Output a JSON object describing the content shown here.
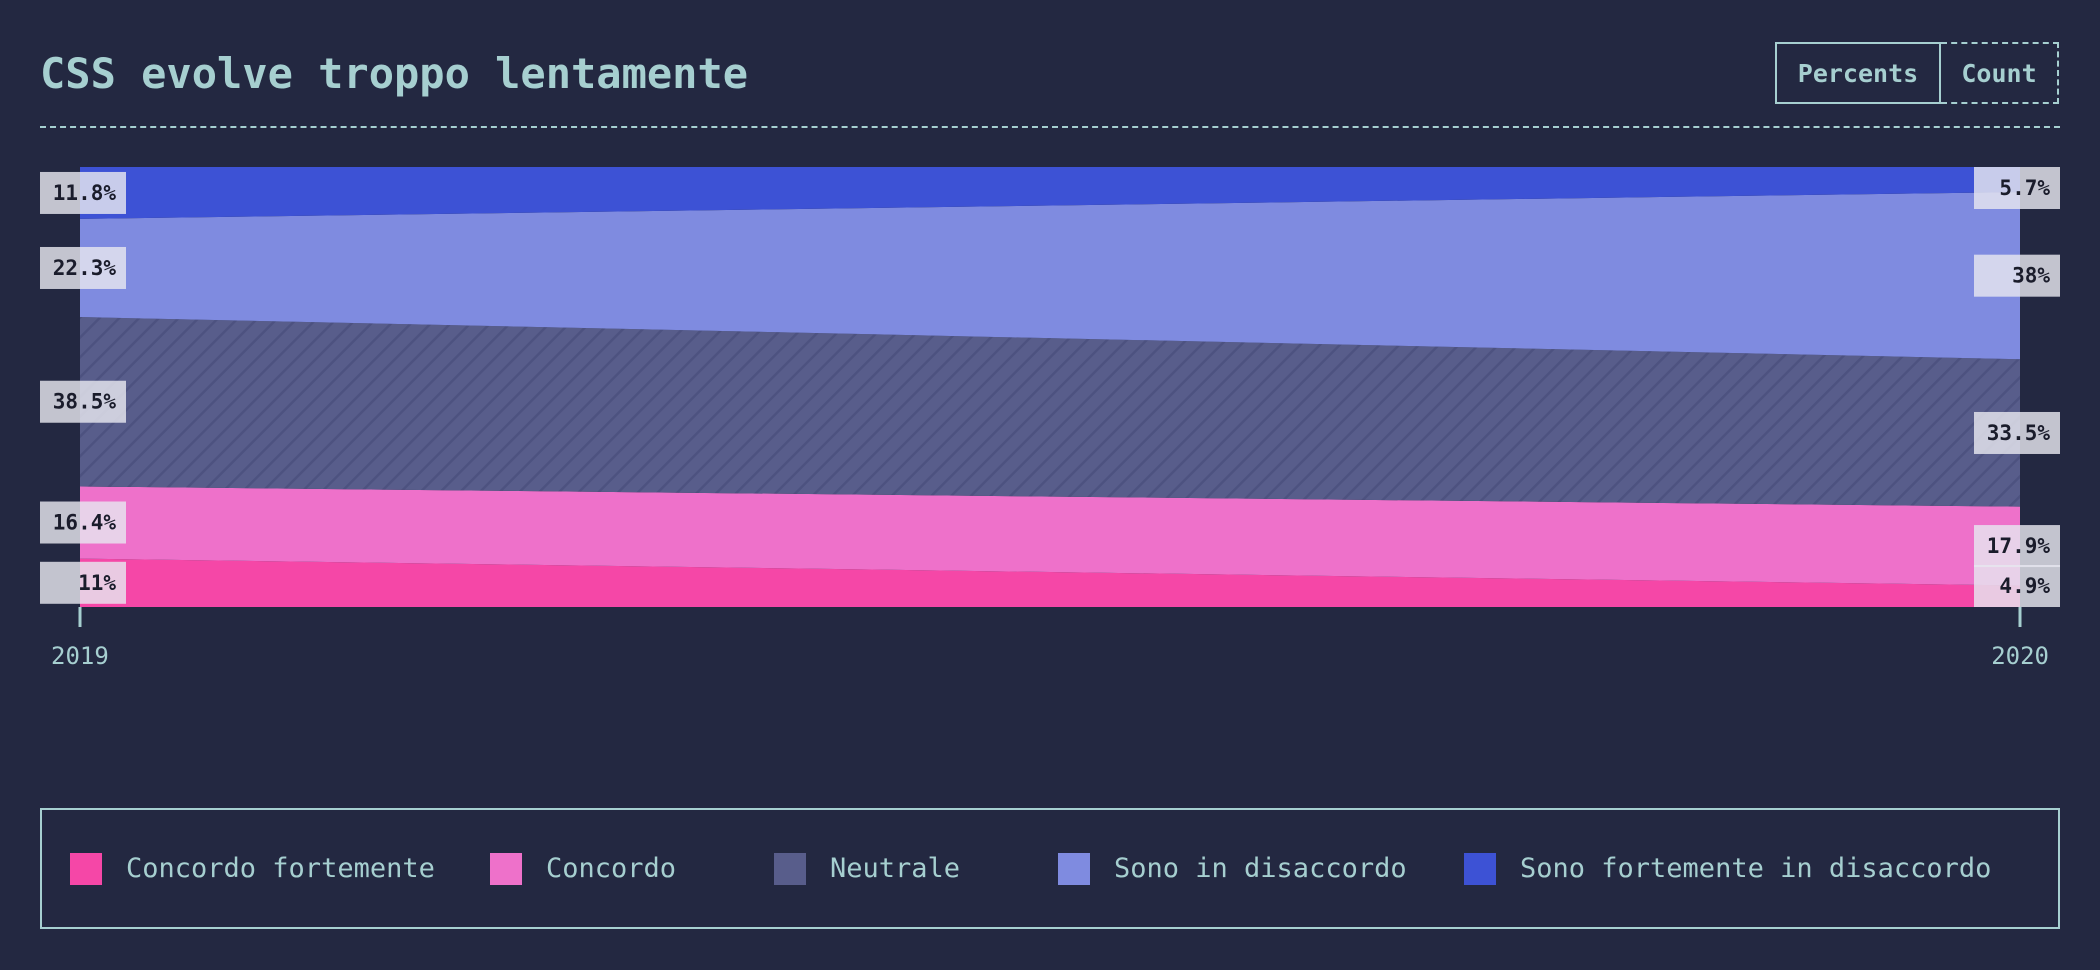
{
  "title": "CSS evolve troppo lentamente",
  "toggle": {
    "percents_label": "Percents",
    "count_label": "Count",
    "active": "Percents"
  },
  "colors": {
    "background": "#232841",
    "text": "#a6cfd0",
    "label_box": "#e6e6ef"
  },
  "chart_data": {
    "type": "area",
    "x": [
      "2019",
      "2020"
    ],
    "series": [
      {
        "name": "Concordo fortemente",
        "values": [
          11,
          4.9
        ],
        "color": "#f547a7"
      },
      {
        "name": "Concordo",
        "values": [
          16.4,
          17.9
        ],
        "color": "#ee71ca"
      },
      {
        "name": "Neutrale",
        "values": [
          38.5,
          33.5
        ],
        "color": "#585d8b",
        "pattern": "diagonal-hatch"
      },
      {
        "name": "Sono in disaccordo",
        "values": [
          22.3,
          38
        ],
        "color": "#7f8be0"
      },
      {
        "name": "Sono fortemente in disaccordo",
        "values": [
          11.8,
          5.7
        ],
        "color": "#3d52d5"
      }
    ],
    "value_labels_2019": [
      "11%",
      "16.4%",
      "38.5%",
      "22.3%",
      "11.8%"
    ],
    "value_labels_2020": [
      "4.9%",
      "17.9%",
      "33.5%",
      "38%",
      "5.7%"
    ],
    "stacked": true,
    "ylim": [
      0,
      100
    ],
    "grid": false,
    "legend_position": "bottom"
  }
}
